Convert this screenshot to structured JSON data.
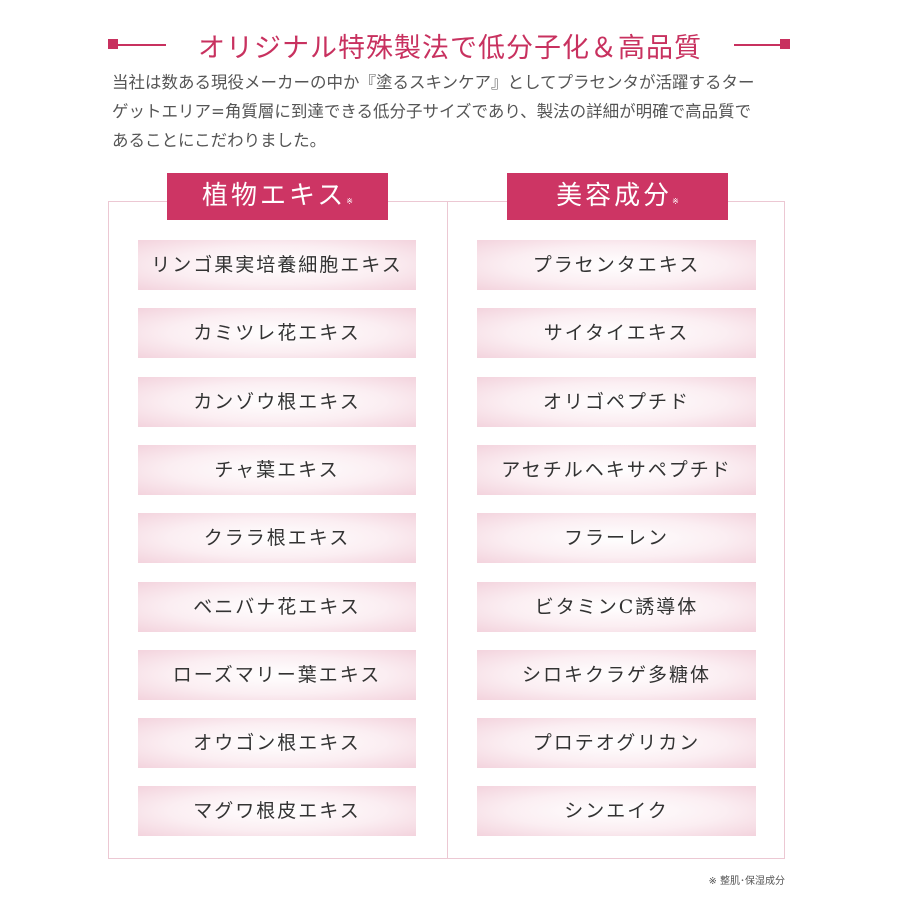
{
  "title": "オリジナル特殊製法で低分子化＆高品質",
  "intro": [
    "当社は数ある現役メーカーの中か『塗るスキンケア』としてプラセンタが活躍するター",
    "ゲットエリア=角質層に到達できる低分子サイズであり、製法の詳細が明確で高品質で",
    "あることにこだわりました。"
  ],
  "columns": [
    {
      "heading": "植物エキス",
      "mark": "※",
      "items": [
        "リンゴ果実培養細胞エキス",
        "カミツレ花エキス",
        "カンゾウ根エキス",
        "チャ葉エキス",
        "クララ根エキス",
        "ベニバナ花エキス",
        "ローズマリー葉エキス",
        "オウゴン根エキス",
        "マグワ根皮エキス"
      ]
    },
    {
      "heading": "美容成分",
      "mark": "※",
      "items": [
        "プラセンタエキス",
        "サイタイエキス",
        "オリゴペプチド",
        "アセチルヘキサペプチド",
        "フラーレン",
        "ビタミンC誘導体",
        "シロキクラゲ多糖体",
        "プロテオグリカン",
        "シンエイク"
      ]
    }
  ],
  "note": "※ 整肌･保湿成分",
  "colors": {
    "accent": "#cd3564"
  }
}
